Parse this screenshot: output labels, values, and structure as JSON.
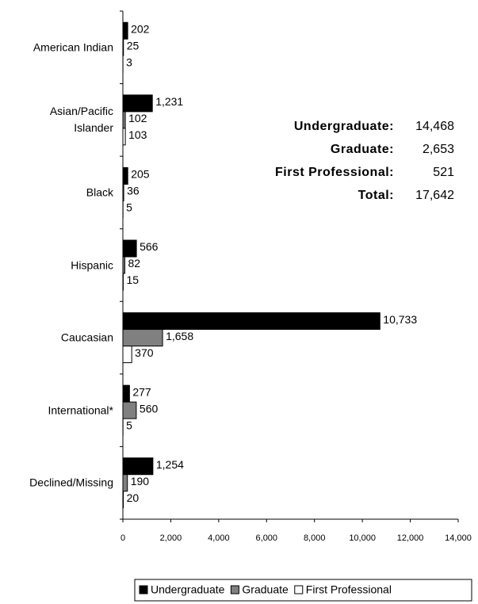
{
  "chart_data": {
    "type": "hbar",
    "categories": [
      "American Indian",
      "Asian/Pacific Islander",
      "Black",
      "Hispanic",
      "Caucasian",
      "International*",
      "Declined/Missing"
    ],
    "series": [
      {
        "name": "Undergraduate",
        "color": "#000000",
        "values": [
          202,
          1231,
          205,
          566,
          10733,
          277,
          1254
        ],
        "value_labels": [
          "202",
          "1,231",
          "205",
          "566",
          "10,733",
          "277",
          "1,254"
        ]
      },
      {
        "name": "Graduate",
        "color": "#808080",
        "values": [
          25,
          102,
          36,
          82,
          1658,
          560,
          190
        ],
        "value_labels": [
          "25",
          "102",
          "36",
          "82",
          "1,658",
          "560",
          "190"
        ]
      },
      {
        "name": "First Professional",
        "color": "#ffffff",
        "values": [
          3,
          103,
          5,
          15,
          370,
          5,
          20
        ],
        "value_labels": [
          "3",
          "103",
          "5",
          "15",
          "370",
          "5",
          "20"
        ]
      }
    ],
    "xlim": [
      0,
      14000
    ],
    "xticks": [
      0,
      {
        "value": 2000,
        "label": "2,000"
      },
      {
        "value": 4000,
        "label": "4,000"
      },
      {
        "value": 6000,
        "label": "6,000"
      },
      {
        "value": 8000,
        "label": "8,000"
      },
      {
        "value": 10000,
        "label": "10,000"
      },
      {
        "value": 12000,
        "label": "12,000"
      },
      {
        "value": 14000,
        "label": "14,000"
      }
    ],
    "summary": [
      {
        "label": "Undergraduate:",
        "value": "14,468"
      },
      {
        "label": "Graduate:",
        "value": "2,653"
      },
      {
        "label": "First Professional:",
        "value": "521"
      },
      {
        "label": "Total:",
        "value": "17,642"
      }
    ]
  }
}
